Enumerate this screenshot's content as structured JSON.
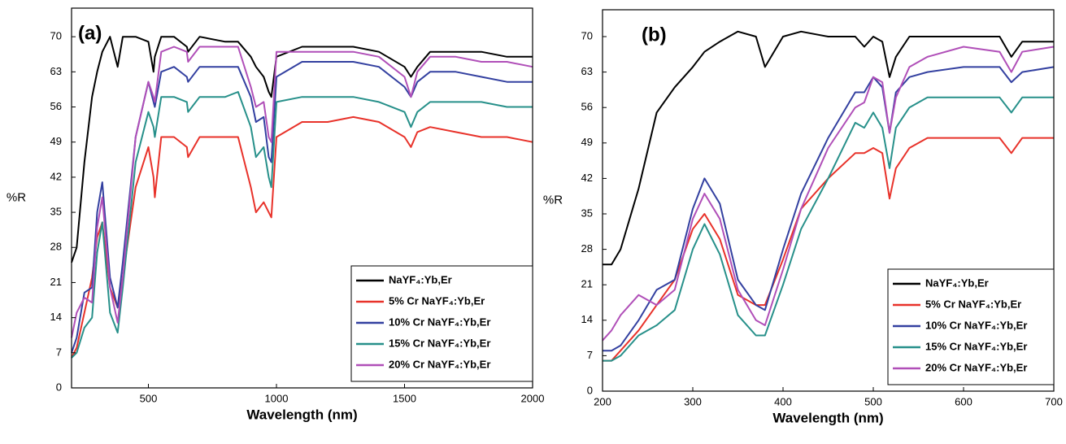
{
  "chart_data": [
    {
      "type": "line",
      "panel_label": "(a)",
      "y_label": "%R",
      "x_label": "Wavelength (nm)",
      "xlim": [
        200,
        2000
      ],
      "xticks": [
        500,
        1000,
        1500,
        2000
      ],
      "ylim": [
        0,
        75.7
      ],
      "yticks": [
        0,
        7,
        14,
        21,
        28,
        35,
        42,
        49,
        56,
        63,
        70
      ],
      "legend": "lower right",
      "x": [
        200,
        220,
        250,
        280,
        300,
        320,
        350,
        380,
        400,
        450,
        500,
        520,
        525,
        550,
        600,
        650,
        655,
        700,
        800,
        850,
        900,
        920,
        950,
        970,
        980,
        1000,
        1100,
        1200,
        1300,
        1400,
        1500,
        1525,
        1550,
        1600,
        1700,
        1800,
        1900,
        2000
      ],
      "series": [
        {
          "name": "NaYF₄:Yb,Er",
          "color": "#000000",
          "values": [
            25,
            28,
            45,
            58,
            63,
            67,
            70,
            64,
            70,
            70,
            69,
            63,
            66,
            70,
            70,
            68,
            67,
            70,
            69,
            69,
            66,
            64,
            62,
            59,
            58,
            66,
            68,
            68,
            68,
            67,
            64,
            62,
            64,
            67,
            67,
            67,
            66,
            66
          ]
        },
        {
          "name": "5% Cr NaYF₄:Yb,Er",
          "color": "#e8322a",
          "values": [
            6,
            8,
            15,
            22,
            30,
            33,
            20,
            16,
            22,
            40,
            48,
            42,
            38,
            50,
            50,
            48,
            46,
            50,
            50,
            50,
            40,
            35,
            37,
            35,
            34,
            50,
            53,
            53,
            54,
            53,
            50,
            48,
            51,
            52,
            51,
            50,
            50,
            49
          ]
        },
        {
          "name": "10% Cr NaYF₄:Yb,Er",
          "color": "#3340a0",
          "values": [
            7,
            10,
            19,
            20,
            35,
            41,
            22,
            16,
            25,
            50,
            61,
            57,
            56,
            63,
            64,
            62,
            61,
            64,
            64,
            64,
            58,
            53,
            54,
            46,
            45,
            62,
            65,
            65,
            65,
            64,
            60,
            58,
            61,
            63,
            63,
            62,
            61,
            61
          ]
        },
        {
          "name": "15% Cr NaYF₄:Yb,Er",
          "color": "#27908a",
          "values": [
            6,
            7,
            12,
            14,
            27,
            33,
            15,
            11,
            20,
            45,
            55,
            52,
            50,
            58,
            58,
            57,
            55,
            58,
            58,
            59,
            52,
            46,
            48,
            42,
            40,
            57,
            58,
            58,
            58,
            57,
            55,
            52,
            55,
            57,
            57,
            57,
            56,
            56
          ]
        },
        {
          "name": "20% Cr NaYF₄:Yb,Er",
          "color": "#b04fb8",
          "values": [
            10,
            15,
            18,
            17,
            32,
            38,
            20,
            13,
            22,
            50,
            61,
            58,
            57,
            67,
            68,
            67,
            65,
            68,
            68,
            68,
            60,
            56,
            57,
            50,
            49,
            67,
            67,
            67,
            67,
            66,
            62,
            58,
            63,
            66,
            66,
            65,
            65,
            64
          ]
        }
      ]
    },
    {
      "type": "line",
      "panel_label": "(b)",
      "y_label": "%R",
      "x_label": "Wavelength (nm)",
      "xlim": [
        200,
        700
      ],
      "xticks": [
        200,
        300,
        400,
        500,
        600,
        700
      ],
      "ylim": [
        0,
        75.3
      ],
      "yticks": [
        0,
        7,
        14,
        21,
        28,
        35,
        42,
        49,
        56,
        63,
        70
      ],
      "legend": "lower right",
      "x": [
        200,
        210,
        220,
        240,
        260,
        280,
        300,
        313,
        330,
        350,
        370,
        380,
        400,
        420,
        450,
        480,
        490,
        500,
        510,
        518,
        525,
        540,
        560,
        600,
        640,
        653,
        665,
        700
      ],
      "series": [
        {
          "name": "NaYF₄:Yb,Er",
          "color": "#000000",
          "values": [
            25,
            25,
            28,
            40,
            55,
            60,
            64,
            67,
            69,
            71,
            70,
            64,
            70,
            71,
            70,
            70,
            68,
            70,
            69,
            62,
            66,
            70,
            70,
            70,
            70,
            66,
            69,
            69
          ]
        },
        {
          "name": "5% Cr NaYF₄:Yb,Er",
          "color": "#e8322a",
          "values": [
            6,
            6,
            8,
            12,
            17,
            22,
            32,
            35,
            30,
            19,
            17,
            17,
            26,
            36,
            42,
            47,
            47,
            48,
            47,
            38,
            44,
            48,
            50,
            50,
            50,
            47,
            50,
            50
          ]
        },
        {
          "name": "10% Cr NaYF₄:Yb,Er",
          "color": "#3340a0",
          "values": [
            8,
            8,
            9,
            14,
            20,
            22,
            36,
            42,
            37,
            22,
            17,
            16,
            28,
            39,
            50,
            59,
            59,
            62,
            60,
            51,
            59,
            62,
            63,
            64,
            64,
            61,
            63,
            64
          ]
        },
        {
          "name": "15% Cr NaYF₄:Yb,Er",
          "color": "#27908a",
          "values": [
            6,
            6,
            7,
            11,
            13,
            16,
            28,
            33,
            27,
            15,
            11,
            11,
            21,
            32,
            42,
            53,
            52,
            55,
            52,
            44,
            52,
            56,
            58,
            58,
            58,
            55,
            58,
            58
          ]
        },
        {
          "name": "20% Cr NaYF₄:Yb,Er",
          "color": "#b04fb8",
          "values": [
            10,
            12,
            15,
            19,
            17,
            20,
            34,
            39,
            34,
            20,
            14,
            13,
            24,
            36,
            48,
            56,
            57,
            62,
            61,
            51,
            58,
            64,
            66,
            68,
            67,
            63,
            67,
            68
          ]
        }
      ]
    }
  ]
}
